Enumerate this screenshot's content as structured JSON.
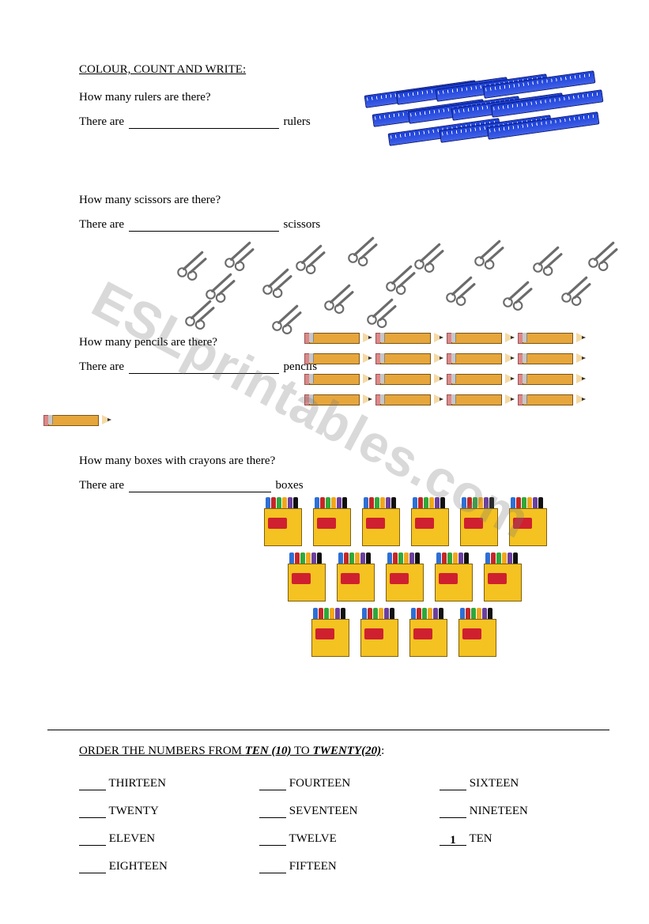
{
  "watermark": "ESLprintables.com",
  "section1": {
    "title": "COLOUR, COUNT AND WRITE:",
    "items": [
      {
        "question": "How many rulers are there?",
        "answer_prefix": "There are",
        "answer_suffix": "rulers",
        "icon_type": "ruler",
        "icon_count": 11,
        "colors": {
          "primary": "#1a3fd6"
        }
      },
      {
        "question": "How many scissors are there?",
        "answer_prefix": "There are",
        "answer_suffix": "scissors",
        "icon_type": "scissors",
        "icon_count": 18,
        "colors": {
          "stroke": "#6b6b6b",
          "fill": "#bfbfbf"
        }
      },
      {
        "question": "How many pencils are there?",
        "answer_prefix": "There are",
        "answer_suffix": "pencils",
        "icon_type": "pencil",
        "icon_count": 17,
        "colors": {
          "body": "#e6a63c",
          "tip": "#f4d9a6"
        }
      },
      {
        "question": "How many boxes with crayons are there?",
        "answer_prefix": "There are",
        "answer_suffix": "boxes",
        "icon_type": "crayon-box",
        "icon_count": 15,
        "colors": {
          "box": "#f4c221",
          "label": "#cf2030",
          "crayons": [
            "#2e6fd6",
            "#c62626",
            "#2fa83a",
            "#f2a71b",
            "#6b3fa0",
            "#111"
          ]
        }
      }
    ]
  },
  "section2": {
    "title_plain": "ORDER THE NUMBERS FROM ",
    "title_from": "TEN (10)",
    "title_to_join": " TO ",
    "title_to": "TWENTY(20)",
    "title_end": ":",
    "rows": [
      [
        {
          "label": "THIRTEEN",
          "value": ""
        },
        {
          "label": "FOURTEEN",
          "value": ""
        },
        {
          "label": "SIXTEEN",
          "value": ""
        }
      ],
      [
        {
          "label": "TWENTY",
          "value": ""
        },
        {
          "label": "SEVENTEEN",
          "value": ""
        },
        {
          "label": "NINETEEN",
          "value": ""
        }
      ],
      [
        {
          "label": "ELEVEN",
          "value": ""
        },
        {
          "label": "TWELVE",
          "value": ""
        },
        {
          "label": "TEN",
          "value": "1"
        }
      ],
      [
        {
          "label": "EIGHTEEN",
          "value": ""
        },
        {
          "label": "FIFTEEN",
          "value": ""
        }
      ]
    ]
  }
}
